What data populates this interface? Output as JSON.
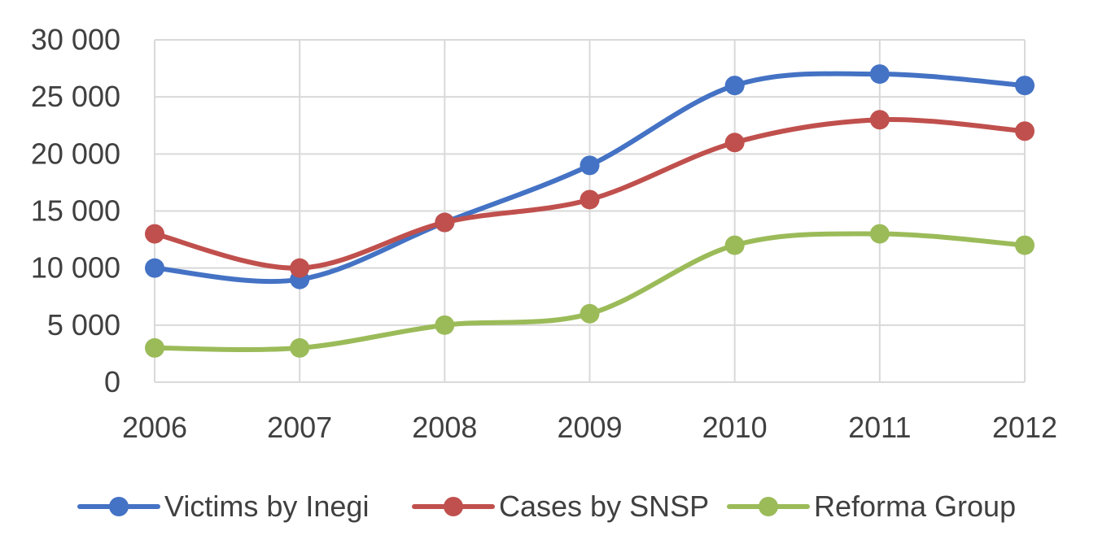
{
  "chart_data": {
    "type": "line",
    "title": "",
    "xlabel": "",
    "ylabel": "",
    "categories": [
      "2006",
      "2007",
      "2008",
      "2009",
      "2010",
      "2011",
      "2012"
    ],
    "ylim": [
      0,
      30000
    ],
    "y_ticks": [
      0,
      5000,
      10000,
      15000,
      20000,
      25000,
      30000
    ],
    "y_tick_labels": [
      "0",
      "5 000",
      "10 000",
      "15 000",
      "20 000",
      "25 000",
      "30 000"
    ],
    "grid": true,
    "smooth": true,
    "legend_position": "bottom",
    "series": [
      {
        "name": "Victims by Inegi",
        "color": "#4472C4",
        "values": [
          10000,
          9000,
          14000,
          19000,
          26000,
          27000,
          26000
        ]
      },
      {
        "name": "Cases by SNSP",
        "color": "#C0504D",
        "values": [
          13000,
          10000,
          14000,
          16000,
          21000,
          23000,
          22000
        ]
      },
      {
        "name": "Reforma Group",
        "color": "#9BBB59",
        "values": [
          3000,
          3000,
          5000,
          6000,
          12000,
          13000,
          12000
        ]
      }
    ]
  }
}
